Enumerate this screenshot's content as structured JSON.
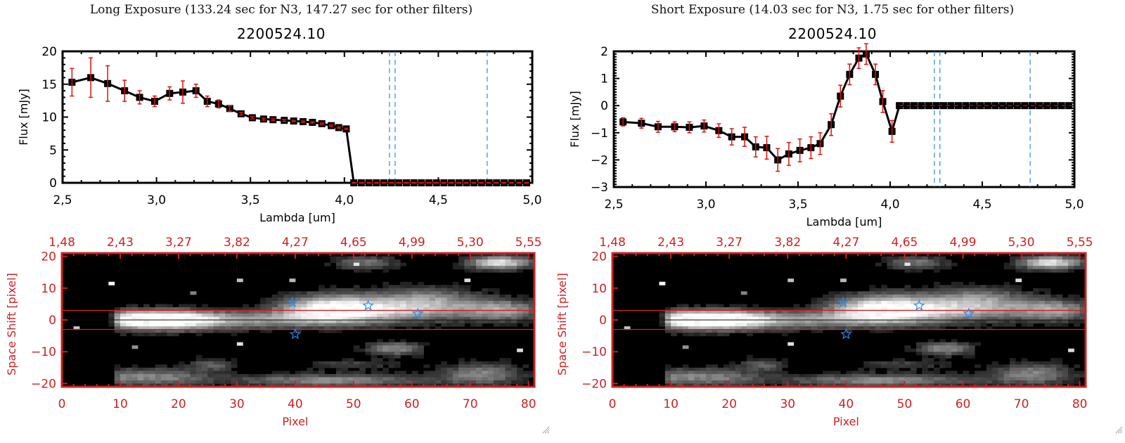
{
  "panels": [
    {
      "title": "Long Exposure (133.24 sec for N3, 147.27 sec for other filters)",
      "object_id": "2200524.10"
    },
    {
      "title": "Short Exposure (14.03 sec for N3, 1.75 sec for other filters)",
      "object_id": "2200524.10"
    }
  ],
  "colors": {
    "line": "#000000",
    "errorbar": "#e01010",
    "zero_line": "#e01010",
    "vlines": "#2a8ae8",
    "image_frame": "#cc2222",
    "stars": "#2a8ae8"
  },
  "chart_data": [
    {
      "type": "line",
      "title": "2200524.10",
      "xlabel": "Lambda [um]",
      "ylabel": "Flux [mJy]",
      "xlim": [
        2.5,
        5.0
      ],
      "ylim": [
        0,
        20
      ],
      "xticks": [
        "2.5",
        "3.0",
        "3.5",
        "4.0",
        "4.5",
        "5.0"
      ],
      "yticks": [
        "0",
        "5",
        "10",
        "15",
        "20"
      ],
      "grid": false,
      "vlines": [
        4.24,
        4.27,
        4.76
      ],
      "zero_line": 0,
      "series": [
        {
          "name": "flux",
          "x": [
            2.55,
            2.65,
            2.74,
            2.83,
            2.91,
            2.99,
            3.07,
            3.14,
            3.21,
            3.27,
            3.33,
            3.39,
            3.45,
            3.51,
            3.57,
            3.62,
            3.68,
            3.73,
            3.78,
            3.83,
            3.88,
            3.93,
            3.97,
            4.01,
            4.05,
            4.09,
            4.13,
            4.17,
            4.21,
            4.25,
            4.29,
            4.33,
            4.37,
            4.41,
            4.45,
            4.49,
            4.53,
            4.57,
            4.61,
            4.65,
            4.69,
            4.73,
            4.77,
            4.81,
            4.85,
            4.89,
            4.93,
            4.97
          ],
          "y": [
            15.3,
            16.0,
            15.1,
            14.0,
            13.0,
            12.4,
            13.6,
            13.8,
            14.0,
            12.4,
            12.0,
            11.3,
            10.5,
            9.9,
            9.7,
            9.6,
            9.5,
            9.4,
            9.3,
            9.2,
            9.0,
            8.7,
            8.4,
            8.2,
            0,
            0,
            0,
            0,
            0,
            0,
            0,
            0,
            0,
            0,
            0,
            0,
            0,
            0,
            0,
            0,
            0,
            0,
            0,
            0,
            0,
            0,
            0,
            0
          ],
          "yerr": [
            2.1,
            3.0,
            2.7,
            1.6,
            1.0,
            0.8,
            1.0,
            1.7,
            1.0,
            0.8,
            0.6,
            0.4,
            0.2,
            0.2,
            0.15,
            0.15,
            0.15,
            0.1,
            0.1,
            0.1,
            0.1,
            0.1,
            0.1,
            0.1,
            0.05,
            0.05,
            0.05,
            0.05,
            0.05,
            0.05,
            0.05,
            0.05,
            0.05,
            0.05,
            0.05,
            0.05,
            0.05,
            0.05,
            0.05,
            0.05,
            0.05,
            0.05,
            0.05,
            0.05,
            0.05,
            0.05,
            0.05,
            0.05
          ]
        }
      ]
    },
    {
      "type": "line",
      "title": "2200524.10",
      "xlabel": "Lambda [um]",
      "ylabel": "Flux [mJy]",
      "xlim": [
        2.5,
        5.0
      ],
      "ylim": [
        -3,
        2
      ],
      "xticks": [
        "2.5",
        "3.0",
        "3.5",
        "4.0",
        "4.5",
        "5.0"
      ],
      "yticks": [
        "-3",
        "-2",
        "-1",
        "0",
        "1",
        "2"
      ],
      "grid": false,
      "vlines": [
        4.24,
        4.27,
        4.76
      ],
      "zero_line": 0,
      "series": [
        {
          "name": "flux",
          "x": [
            2.55,
            2.65,
            2.74,
            2.83,
            2.91,
            2.99,
            3.07,
            3.14,
            3.21,
            3.27,
            3.33,
            3.39,
            3.45,
            3.51,
            3.57,
            3.62,
            3.68,
            3.73,
            3.78,
            3.83,
            3.87,
            3.92,
            3.96,
            4.01,
            4.05,
            4.09,
            4.13,
            4.17,
            4.21,
            4.25,
            4.29,
            4.33,
            4.37,
            4.41,
            4.45,
            4.49,
            4.53,
            4.57,
            4.61,
            4.65,
            4.69,
            4.73,
            4.77,
            4.81,
            4.85,
            4.89,
            4.93,
            4.97
          ],
          "y": [
            -0.6,
            -0.65,
            -0.78,
            -0.78,
            -0.8,
            -0.75,
            -0.92,
            -1.15,
            -1.15,
            -1.52,
            -1.55,
            -2.0,
            -1.78,
            -1.65,
            -1.55,
            -1.4,
            -0.7,
            0.35,
            1.15,
            1.75,
            1.9,
            1.15,
            0.15,
            -0.95,
            0,
            0,
            0,
            0,
            0,
            0,
            0,
            0,
            0,
            0,
            0,
            0,
            0,
            0,
            0,
            0,
            0,
            0,
            0,
            0,
            0,
            0,
            0,
            0
          ],
          "yerr": [
            0.15,
            0.18,
            0.2,
            0.18,
            0.2,
            0.22,
            0.25,
            0.3,
            0.35,
            0.37,
            0.42,
            0.42,
            0.42,
            0.42,
            0.4,
            0.4,
            0.4,
            0.4,
            0.38,
            0.38,
            0.38,
            0.38,
            0.4,
            0.4,
            0,
            0,
            0,
            0,
            0,
            0,
            0,
            0,
            0,
            0,
            0,
            0,
            0,
            0,
            0,
            0,
            0,
            0,
            0,
            0,
            0,
            0,
            0,
            0
          ]
        }
      ]
    },
    {
      "type": "heatmap",
      "title": "",
      "xlabel": "Pixel",
      "ylabel": "Space Shift [pixel]",
      "xlim": [
        0,
        81
      ],
      "ylim": [
        -21,
        21
      ],
      "xticks": [
        "0",
        "10",
        "20",
        "30",
        "40",
        "50",
        "60",
        "70",
        "80"
      ],
      "yticks": [
        "-20",
        "-10",
        "0",
        "10",
        "20"
      ],
      "top_xticks": [
        "1.48",
        "2.43",
        "3.27",
        "3.82",
        "4.27",
        "4.65",
        "4.99",
        "5.30",
        "5.55"
      ],
      "hlines": [
        -3,
        3
      ],
      "center_line": 0,
      "stars": [
        [
          39.5,
          5.5
        ],
        [
          40,
          -4.5
        ],
        [
          52.5,
          4.5
        ],
        [
          61,
          2
        ]
      ]
    },
    {
      "type": "heatmap",
      "title": "",
      "xlabel": "Pixel",
      "ylabel": "Space Shift [pixel]",
      "xlim": [
        0,
        81
      ],
      "ylim": [
        -21,
        21
      ],
      "xticks": [
        "0",
        "10",
        "20",
        "30",
        "40",
        "50",
        "60",
        "70",
        "80"
      ],
      "yticks": [
        "-20",
        "-10",
        "0",
        "10",
        "20"
      ],
      "top_xticks": [
        "1.48",
        "2.43",
        "3.27",
        "3.82",
        "4.27",
        "4.65",
        "4.99",
        "5.30",
        "5.55"
      ],
      "hlines": [
        -3,
        3
      ],
      "center_line": 0,
      "stars": [
        [
          39.5,
          5.5
        ],
        [
          40,
          -4.5
        ],
        [
          52.5,
          4.5
        ],
        [
          61,
          2
        ]
      ]
    }
  ]
}
